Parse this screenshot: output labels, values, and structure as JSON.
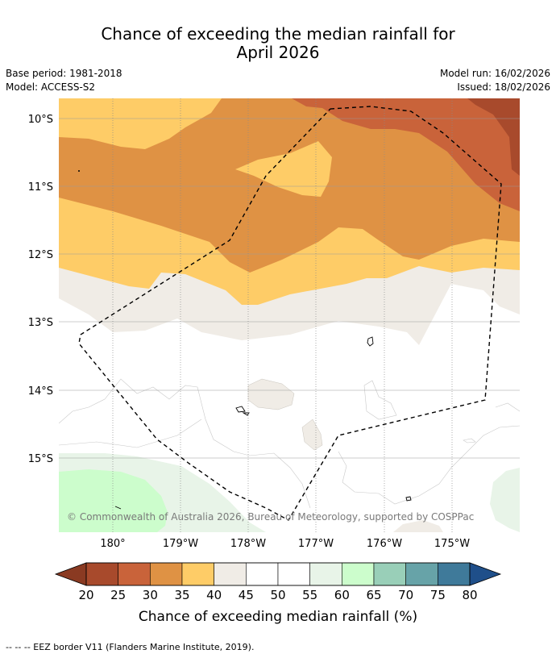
{
  "title": {
    "line1": "Chance of exceeding the median rainfall for",
    "line2": "April 2026"
  },
  "meta": {
    "base_period": "Base period: 1981-2018",
    "model": "Model: ACCESS-S2",
    "model_run": "Model run: 16/02/2026",
    "issued": "Issued: 18/02/2026"
  },
  "map": {
    "lat_labels": [
      "10°S",
      "11°S",
      "12°S",
      "13°S",
      "14°S",
      "15°S"
    ],
    "lon_labels": [
      "180°",
      "179°W",
      "178°W",
      "177°W",
      "176°W",
      "175°W"
    ],
    "copyright": "© Commonwealth of Australia 2026, Bureau of Meteorology, supported by COSPPac",
    "eez_color": "#000000"
  },
  "colorbar": {
    "tick_labels": [
      "20",
      "25",
      "30",
      "35",
      "40",
      "45",
      "50",
      "55",
      "60",
      "65",
      "70",
      "75",
      "80"
    ],
    "colors": [
      "#a84a2c",
      "#c9633a",
      "#df9244",
      "#fecc67",
      "#f0ece6",
      "#ffffff",
      "#ffffff",
      "#e8f4e8",
      "#ccfdcc",
      "#99cfb8",
      "#67a3a8",
      "#3f7a9a"
    ],
    "under_color": "#8a3a22",
    "over_color": "#1f4f8a",
    "label": "Chance of exceeding median rainfall (%)"
  },
  "footer": {
    "eez_legend": "--  --  -- EEZ border V11 (Flanders Marine Institute, 2019)."
  }
}
